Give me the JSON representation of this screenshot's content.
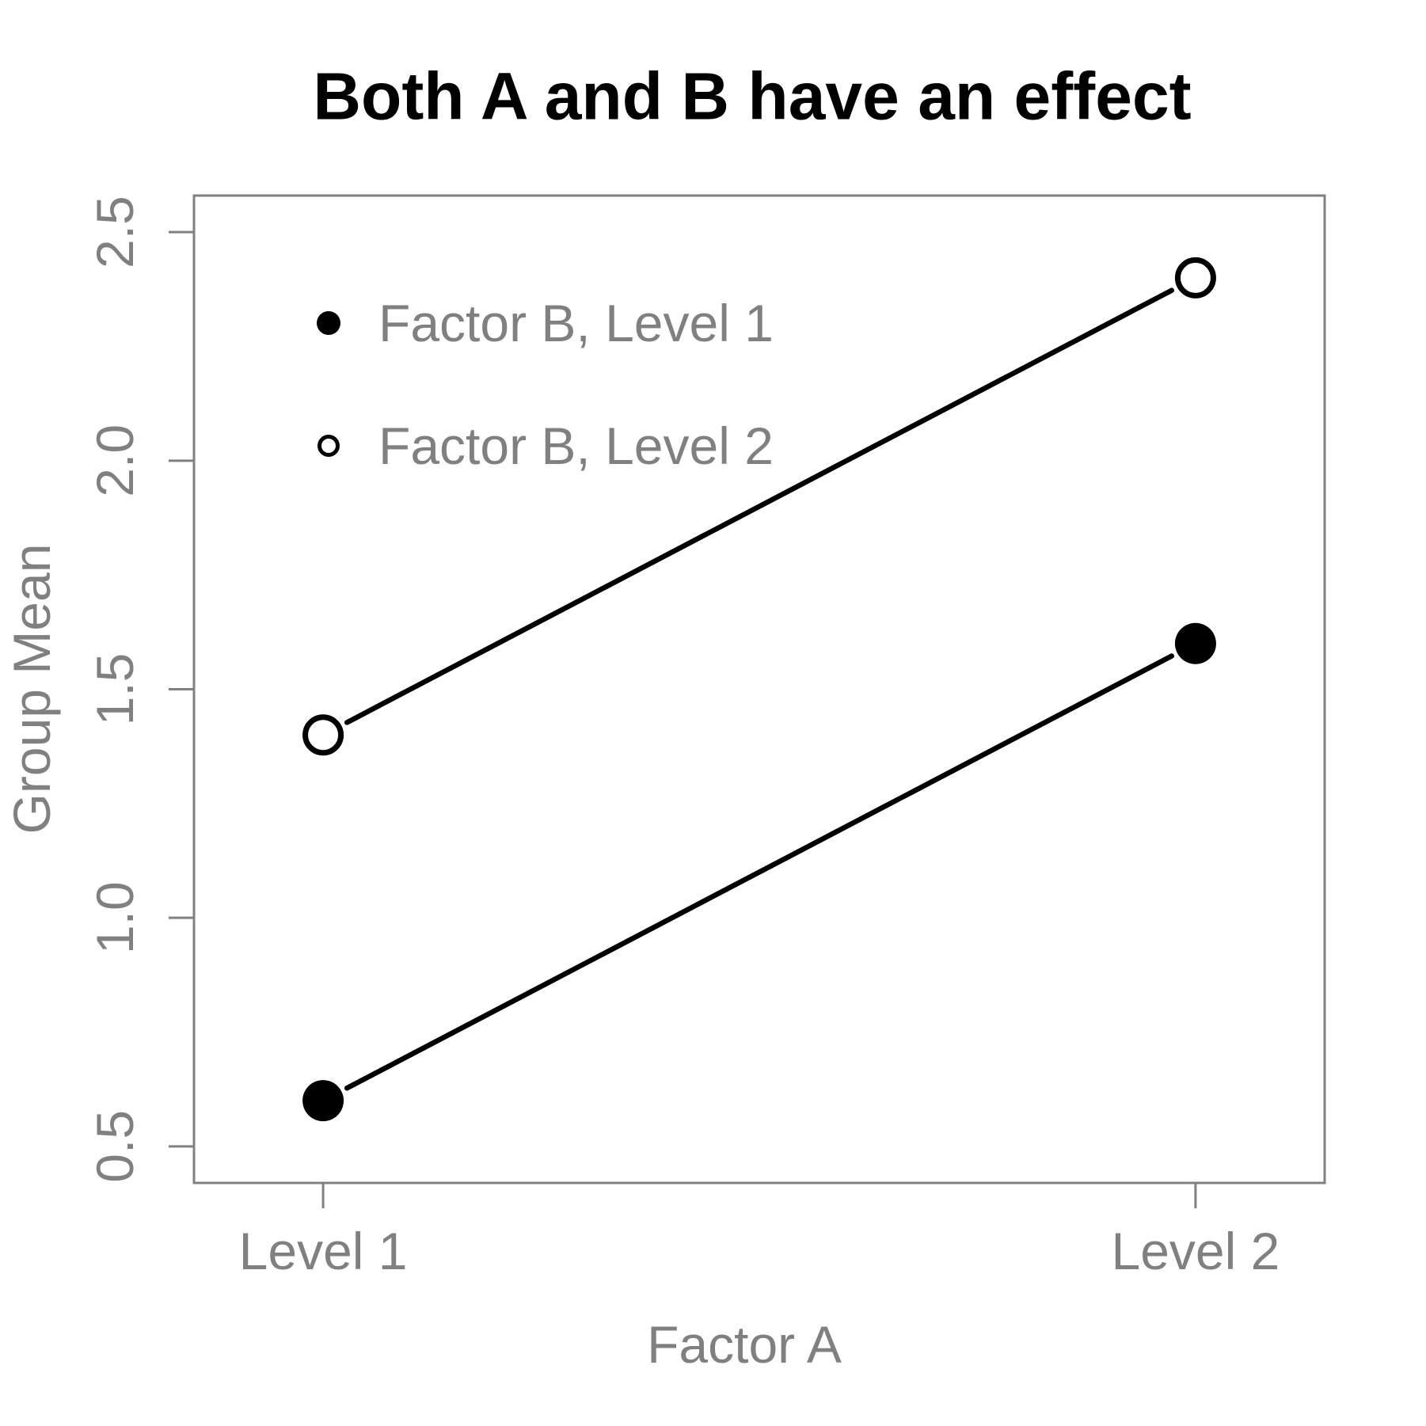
{
  "chart_data": {
    "type": "line",
    "title": "Both A and B have an effect",
    "xlabel": "Factor A",
    "ylabel": "Group Mean",
    "categories": [
      "Level 1",
      "Level 2"
    ],
    "x": [
      1,
      2
    ],
    "series": [
      {
        "name": "Factor B, Level 1",
        "values": [
          0.6,
          1.6
        ],
        "marker": "filled-circle"
      },
      {
        "name": "Factor B, Level 2",
        "values": [
          1.4,
          2.4
        ],
        "marker": "open-circle"
      }
    ],
    "y_ticks": [
      0.5,
      1.0,
      1.5,
      2.0,
      2.5
    ],
    "y_tick_labels": [
      "0.5",
      "1.0",
      "1.5",
      "2.0",
      "2.5"
    ],
    "xlim": [
      0.852,
      2.148
    ],
    "ylim": [
      0.42,
      2.58
    ],
    "grid": false,
    "legend_position": "topleft",
    "legend": [
      "Factor B, Level 1",
      "Factor B, Level 2"
    ],
    "colors": {
      "series": "#000000",
      "axis": "#808080",
      "tick_text": "#808080",
      "legend_text": "#808080",
      "title_text": "#000000",
      "background": "#ffffff"
    }
  }
}
